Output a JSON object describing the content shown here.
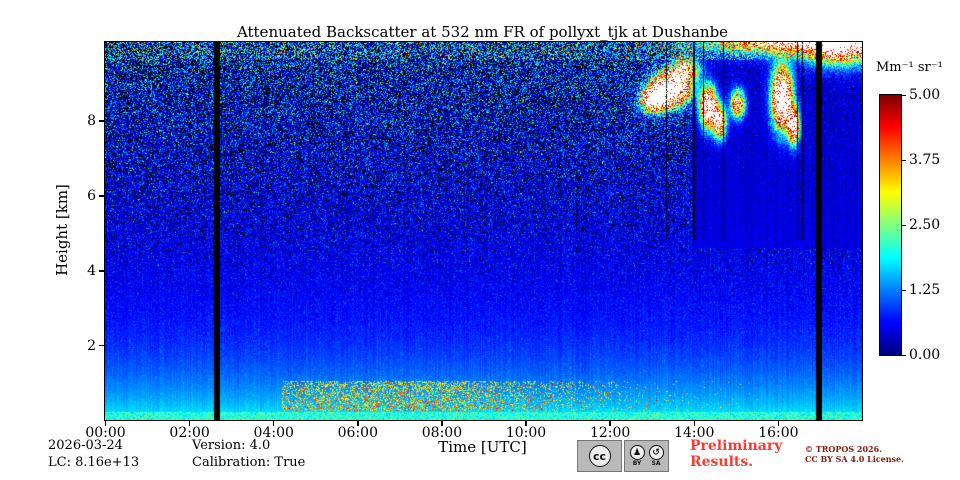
{
  "chart_data": {
    "type": "heatmap",
    "title": "Attenuated Backscatter at 532 nm FR of pollyxt_tjk at Dushanbe",
    "xlabel": "Time [UTC]",
    "ylabel": "Height [km]",
    "x_range_hours": [
      0,
      18
    ],
    "y_range_km": [
      0,
      10.1
    ],
    "grid": false,
    "x_ticks": [
      {
        "hour": 0,
        "label": "00:00"
      },
      {
        "hour": 2,
        "label": "02:00"
      },
      {
        "hour": 4,
        "label": "04:00"
      },
      {
        "hour": 6,
        "label": "06:00"
      },
      {
        "hour": 8,
        "label": "08:00"
      },
      {
        "hour": 10,
        "label": "10:00"
      },
      {
        "hour": 12,
        "label": "12:00"
      },
      {
        "hour": 14,
        "label": "14:00"
      },
      {
        "hour": 16,
        "label": "16:00"
      }
    ],
    "y_ticks": [
      {
        "km": 2,
        "label": "2"
      },
      {
        "km": 4,
        "label": "4"
      },
      {
        "km": 6,
        "label": "6"
      },
      {
        "km": 8,
        "label": "8"
      }
    ],
    "colorbar": {
      "label": "Mm⁻¹ sr⁻¹",
      "vmin": 0,
      "vmax": 5,
      "colormap": "jet",
      "over_color": "#ffffff",
      "masked_color": "#000000",
      "ticks": [
        {
          "value": 5.0,
          "label": "5.00"
        },
        {
          "value": 3.75,
          "label": "3.75"
        },
        {
          "value": 2.5,
          "label": "2.50"
        },
        {
          "value": 1.25,
          "label": "1.25"
        },
        {
          "value": 0.0,
          "label": "0.00"
        }
      ]
    },
    "field_model": {
      "seed": 1337,
      "profile": {
        "offset": 0.36,
        "amp": 1.5,
        "scale_km": 1.8
      },
      "surface_band": {
        "km_top": 0.22,
        "v_min": 1.6,
        "v_spread": 0.9
      },
      "noise": {
        "sigma0": 0.045,
        "sigma_h": 1.05,
        "power": 2.0,
        "spike_prob": 0.05,
        "spike_amp": 3.5
      },
      "column_offset": 0.08,
      "quiet_region": {
        "t_start": 13.95,
        "km_above": 4.6,
        "sigma_factor": 0.22
      },
      "dark_columns": {
        "t_start": 12.9,
        "t_end": 16.88,
        "probability": 0.055,
        "km_above": 4.8
      },
      "gaps_hours": [
        [
          2.58,
          2.73
        ],
        [
          16.9,
          17.06
        ]
      ],
      "aerosol_speckle": {
        "t_start": 4.2,
        "km_min": 0.25,
        "km_max": 1.05,
        "peak_hour": 6.8,
        "sigma_hours": 3.0,
        "max_prob": 0.5,
        "v_min": 0.8,
        "v_spread": 2.0
      },
      "top_edge": {
        "km_above": 9.62,
        "probability": 0.3,
        "v_min": 0.6,
        "v_spread": 1.6
      },
      "clouds": [
        {
          "t": 13.05,
          "h": 8.55,
          "tw": 0.28,
          "hw": 0.3,
          "amp": 7
        },
        {
          "t": 13.45,
          "h": 8.85,
          "tw": 0.42,
          "hw": 0.42,
          "amp": 9
        },
        {
          "t": 13.8,
          "h": 9.35,
          "tw": 0.3,
          "hw": 0.28,
          "amp": 5
        },
        {
          "t": 14.35,
          "h": 8.35,
          "tw": 0.18,
          "hw": 0.5,
          "amp": 8
        },
        {
          "t": 14.62,
          "h": 7.95,
          "tw": 0.14,
          "hw": 0.4,
          "amp": 6
        },
        {
          "t": 15.05,
          "h": 8.45,
          "tw": 0.16,
          "hw": 0.35,
          "amp": 5
        },
        {
          "t": 16.1,
          "h": 8.6,
          "tw": 0.22,
          "hw": 0.75,
          "amp": 9
        },
        {
          "t": 16.38,
          "h": 7.85,
          "tw": 0.12,
          "hw": 0.45,
          "amp": 7
        },
        {
          "t": 16.25,
          "h": 10.3,
          "tw": 1.9,
          "hw": 0.42,
          "amp": 7
        },
        {
          "t": 17.5,
          "h": 10.0,
          "tw": 0.8,
          "hw": 0.5,
          "amp": 5
        }
      ]
    }
  },
  "footer": {
    "date": "2026-03-24",
    "lc": "LC: 8.16e+13",
    "version": "Version: 4.0",
    "calibration": "Calibration: True",
    "preliminary": {
      "line1": "Preliminary",
      "line2": "Results.",
      "color": "#f93b30"
    },
    "copyright": {
      "line1": "© TROPOS 2026.",
      "line2": "CC BY SA 4.0 License.",
      "color": "#8b1a0e"
    },
    "badge": {
      "cc": "cc",
      "by_label": "BY",
      "sa_label": "SA",
      "by_symbol": "♟",
      "sa_symbol": "↺"
    }
  }
}
